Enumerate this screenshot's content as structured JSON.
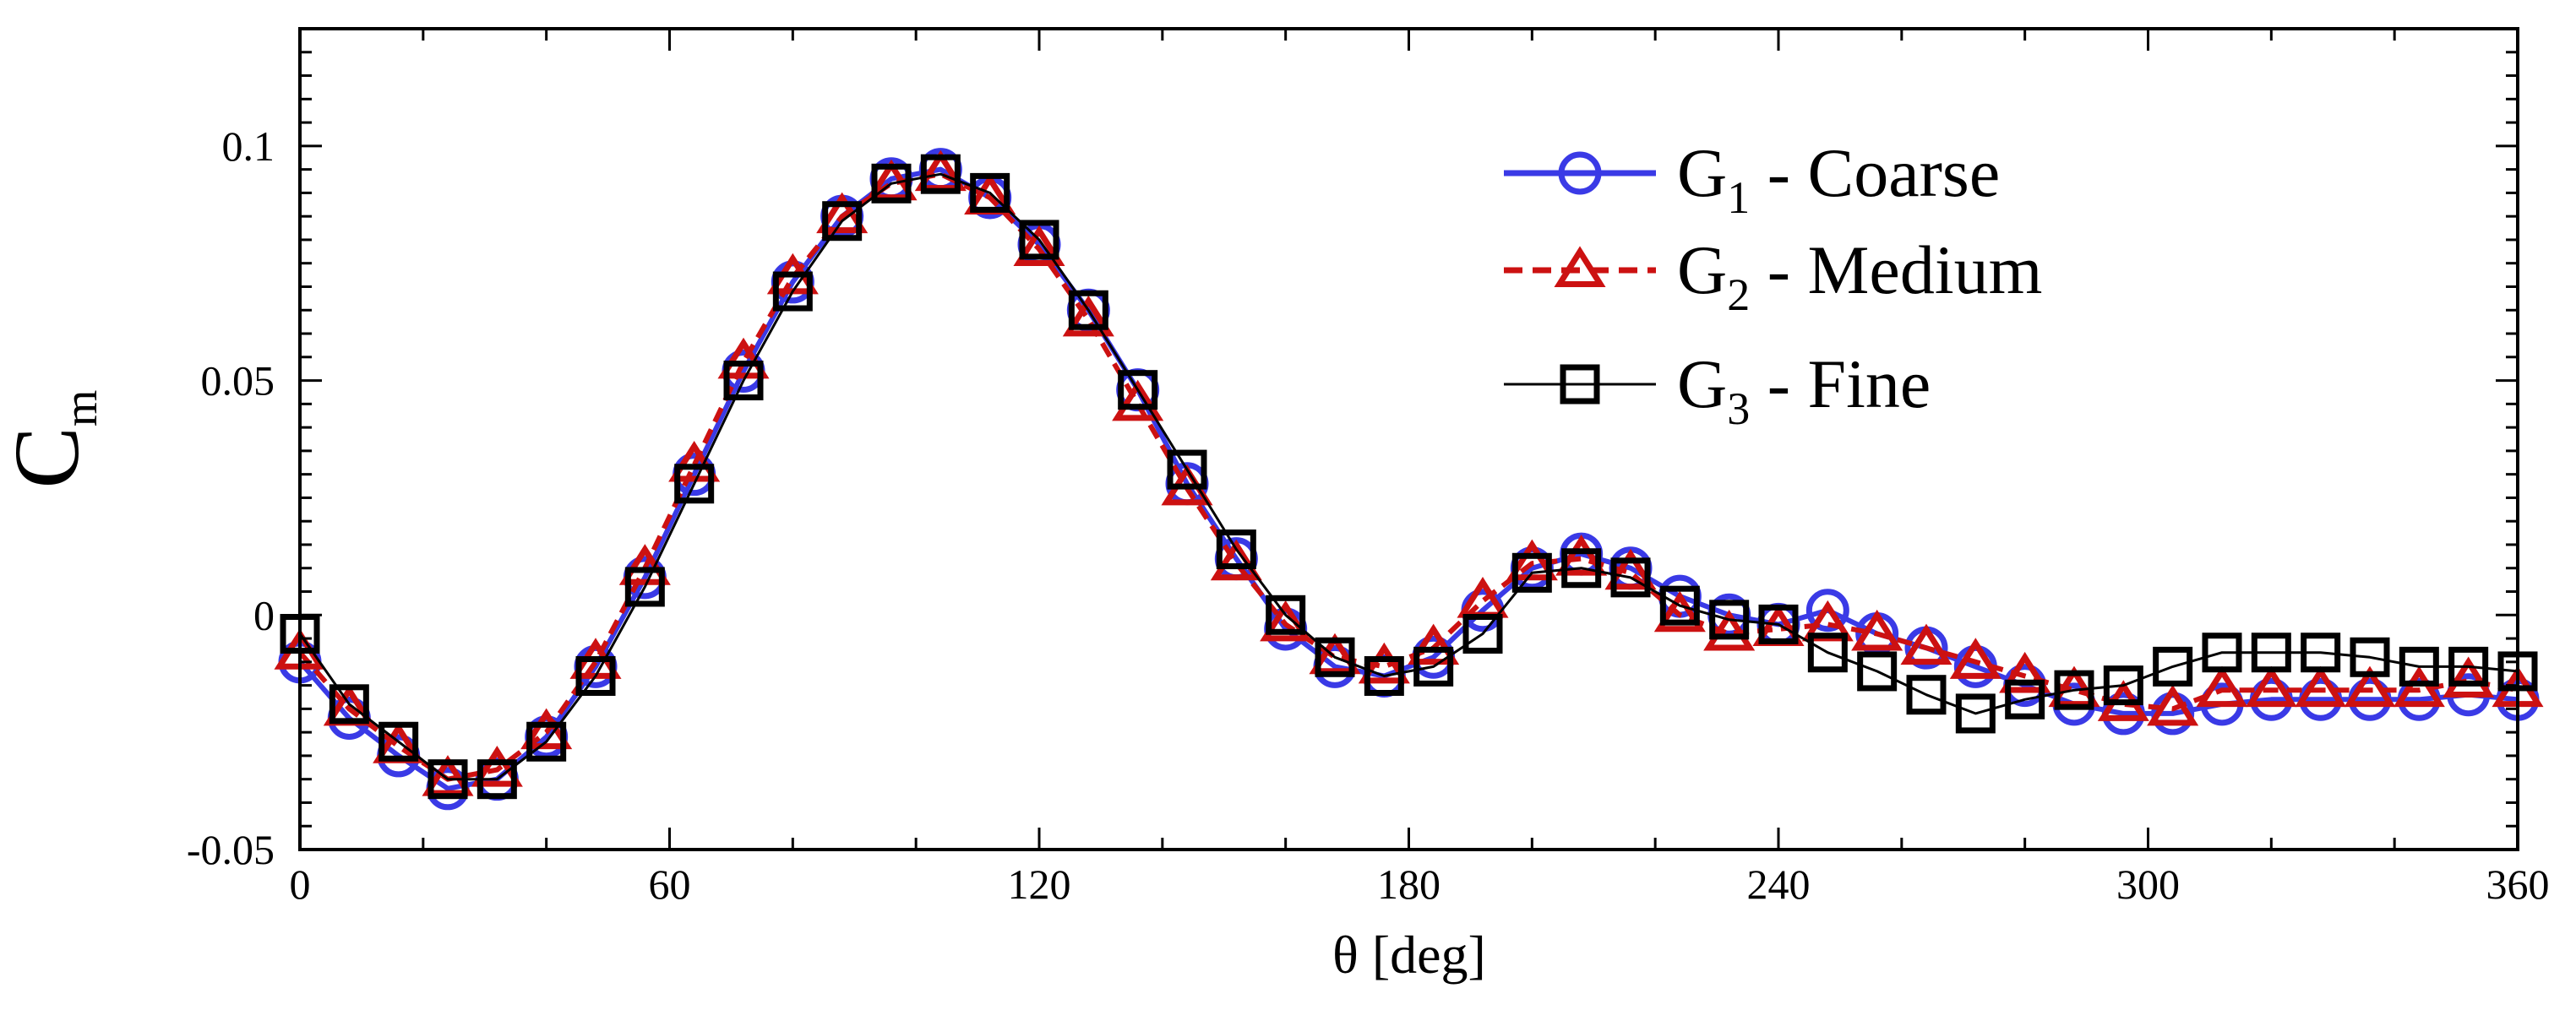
{
  "chart_data": {
    "type": "line",
    "title": "",
    "xlabel": "θ [deg]",
    "ylabel": {
      "main": "C",
      "sub": "m"
    },
    "xlim": [
      0,
      360
    ],
    "ylim": [
      -0.05,
      0.125
    ],
    "xticks": [
      0,
      60,
      120,
      180,
      240,
      300,
      360
    ],
    "xtick_labels": [
      "0",
      "60",
      "120",
      "180",
      "240",
      "300",
      "360"
    ],
    "yticks": [
      -0.05,
      0,
      0.05,
      0.1
    ],
    "ytick_labels": [
      "-0.05",
      "0",
      "0.05",
      "0.1"
    ],
    "grid": false,
    "legend_position": "top-right",
    "x": [
      0,
      8,
      16,
      24,
      32,
      40,
      48,
      56,
      64,
      72,
      80,
      88,
      96,
      104,
      112,
      120,
      128,
      136,
      144,
      152,
      160,
      168,
      176,
      184,
      192,
      200,
      208,
      216,
      224,
      232,
      240,
      248,
      256,
      264,
      272,
      280,
      288,
      296,
      304,
      312,
      320,
      328,
      336,
      344,
      352,
      360
    ],
    "series": [
      {
        "name": "G1 - Coarse",
        "legend_main": "G",
        "legend_sub": "1",
        "legend_rest": " - Coarse",
        "color": "#3a3ae6",
        "marker": "circle",
        "line_style": "solid",
        "values": [
          -0.01,
          -0.022,
          -0.03,
          -0.037,
          -0.035,
          -0.026,
          -0.011,
          0.008,
          0.03,
          0.052,
          0.071,
          0.085,
          0.093,
          0.095,
          0.089,
          0.079,
          0.065,
          0.048,
          0.028,
          0.012,
          -0.003,
          -0.011,
          -0.013,
          -0.009,
          0.001,
          0.01,
          0.013,
          0.01,
          0.004,
          0.0,
          -0.002,
          0.001,
          -0.004,
          -0.007,
          -0.011,
          -0.015,
          -0.019,
          -0.021,
          -0.021,
          -0.019,
          -0.018,
          -0.018,
          -0.018,
          -0.018,
          -0.017,
          -0.018
        ]
      },
      {
        "name": "G2 - Medium",
        "legend_main": "G",
        "legend_sub": "2",
        "legend_rest": " - Medium",
        "color": "#cc1111",
        "marker": "triangle",
        "line_style": "dashed",
        "values": [
          -0.008,
          -0.02,
          -0.028,
          -0.035,
          -0.033,
          -0.025,
          -0.01,
          0.01,
          0.032,
          0.054,
          0.072,
          0.085,
          0.092,
          0.094,
          0.089,
          0.078,
          0.063,
          0.045,
          0.027,
          0.011,
          -0.002,
          -0.009,
          -0.011,
          -0.007,
          0.003,
          0.011,
          0.012,
          0.009,
          0.0,
          -0.004,
          -0.003,
          -0.002,
          -0.004,
          -0.007,
          -0.01,
          -0.013,
          -0.016,
          -0.019,
          -0.02,
          -0.016,
          -0.016,
          -0.016,
          -0.016,
          -0.016,
          -0.014,
          -0.016
        ]
      },
      {
        "name": "G3 - Fine",
        "legend_main": "G",
        "legend_sub": "3",
        "legend_rest": " - Fine",
        "color": "#000000",
        "marker": "square",
        "line_style": "solid",
        "values": [
          -0.004,
          -0.019,
          -0.027,
          -0.035,
          -0.035,
          -0.027,
          -0.013,
          0.006,
          0.028,
          0.05,
          0.069,
          0.084,
          0.092,
          0.094,
          0.09,
          0.08,
          0.065,
          0.048,
          0.031,
          0.014,
          0.0,
          -0.009,
          -0.013,
          -0.011,
          -0.004,
          0.009,
          0.01,
          0.008,
          0.002,
          -0.001,
          -0.002,
          -0.008,
          -0.012,
          -0.017,
          -0.021,
          -0.018,
          -0.016,
          -0.015,
          -0.011,
          -0.008,
          -0.008,
          -0.008,
          -0.009,
          -0.011,
          -0.011,
          -0.012
        ]
      }
    ]
  }
}
